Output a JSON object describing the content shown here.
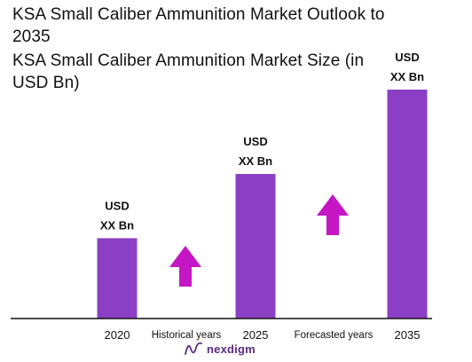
{
  "header": {
    "title": "KSA Small Caliber Ammunition Market Outlook to 2035",
    "subtitle": "KSA Small Caliber Ammunition Market Size (in USD Bn)"
  },
  "colors": {
    "bar": "#8b3fc4",
    "arrow": "#c416c4",
    "axis": "#111111"
  },
  "chart_data": {
    "type": "bar",
    "categories": [
      "2020",
      "2025",
      "2035"
    ],
    "values": [
      1.0,
      1.8,
      2.85
    ],
    "value_note": "relative bar heights; values are not printed",
    "bar_labels": [
      [
        "USD",
        "XX Bn"
      ],
      [
        "USD",
        "XX Bn"
      ],
      [
        "USD",
        "XX Bn"
      ]
    ],
    "annotations": [
      {
        "text": "Historical years",
        "after_category": 0
      },
      {
        "text": "Forecasted years",
        "after_category": 1
      }
    ],
    "ylim": [
      0,
      2.85
    ],
    "grid": false,
    "legend": "none"
  },
  "brand": {
    "name": "nexdigm",
    "icon": "nexdigm-logo-icon"
  }
}
